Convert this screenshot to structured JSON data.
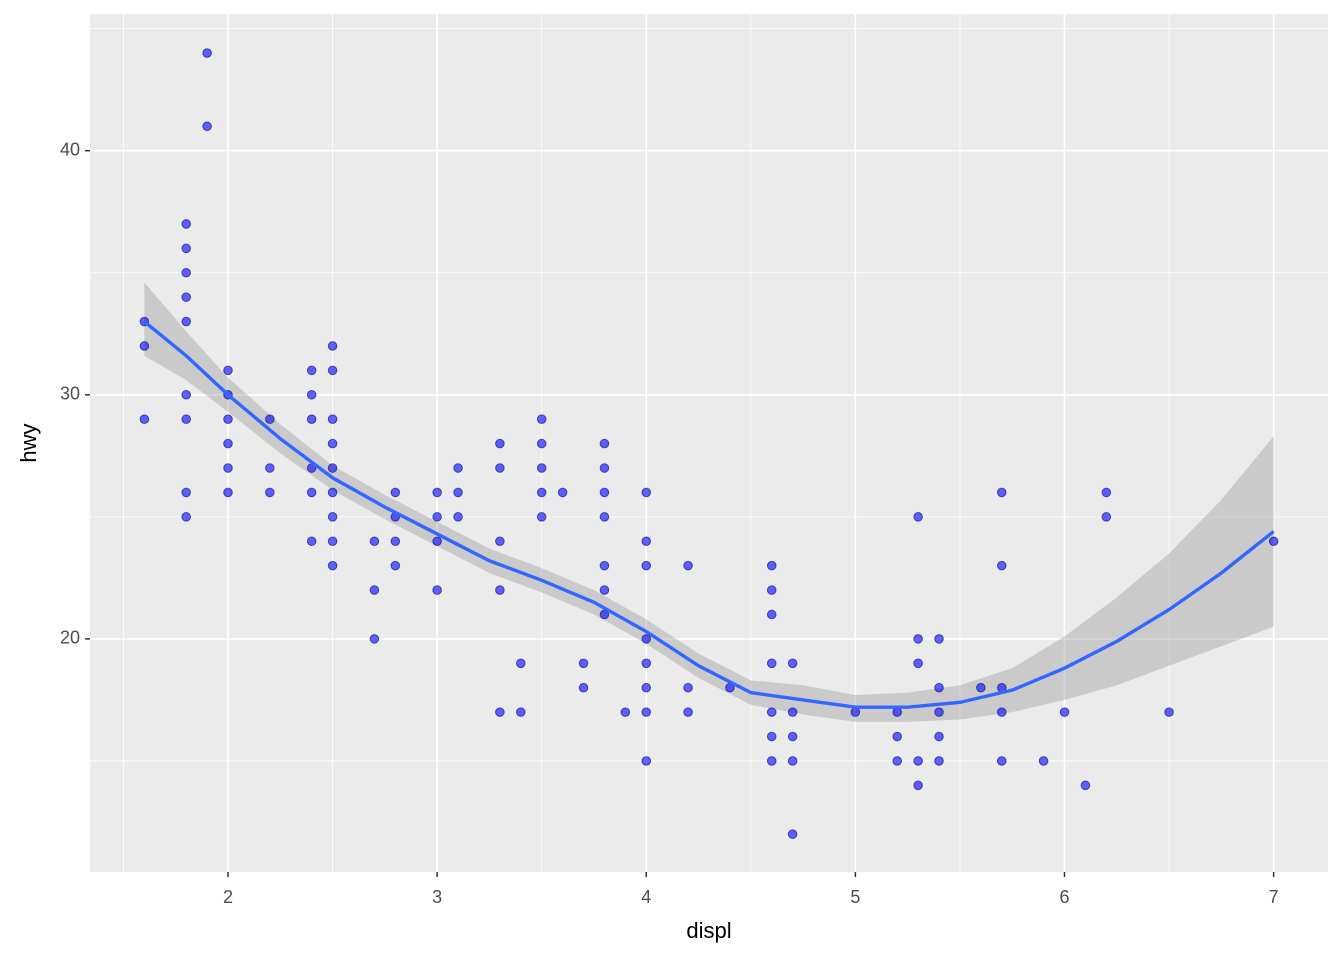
{
  "chart_data": {
    "type": "scatter",
    "x_label": "displ",
    "y_label": "hwy",
    "xlim": [
      1.34,
      7.26
    ],
    "ylim": [
      10.45,
      45.6
    ],
    "xticks": [
      2,
      3,
      4,
      5,
      6,
      7
    ],
    "yticks": [
      20,
      30,
      40
    ],
    "x_minor_grid": [
      1.5,
      2.5,
      3.5,
      4.5,
      5.5,
      6.5
    ],
    "y_minor_grid": [
      15,
      25,
      35,
      45
    ],
    "grid": true,
    "points": {
      "color": "#0000ff",
      "x": [
        1.6,
        1.6,
        1.6,
        1.8,
        1.8,
        1.8,
        1.8,
        1.8,
        1.8,
        1.8,
        1.8,
        1.8,
        1.9,
        1.9,
        2.0,
        2.0,
        2.0,
        2.0,
        2.0,
        2.0,
        2.2,
        2.2,
        2.2,
        2.4,
        2.4,
        2.4,
        2.4,
        2.4,
        2.4,
        2.5,
        2.5,
        2.5,
        2.5,
        2.5,
        2.5,
        2.5,
        2.5,
        2.5,
        2.7,
        2.7,
        2.7,
        2.8,
        2.8,
        2.8,
        2.8,
        3.0,
        3.0,
        3.0,
        3.0,
        3.1,
        3.1,
        3.1,
        3.3,
        3.3,
        3.3,
        3.3,
        3.3,
        3.4,
        3.4,
        3.5,
        3.5,
        3.5,
        3.5,
        3.5,
        3.6,
        3.7,
        3.7,
        3.8,
        3.8,
        3.8,
        3.8,
        3.8,
        3.8,
        3.8,
        3.9,
        4.0,
        4.0,
        4.0,
        4.0,
        4.0,
        4.0,
        4.0,
        4.0,
        4.2,
        4.2,
        4.2,
        4.4,
        4.6,
        4.6,
        4.6,
        4.6,
        4.6,
        4.6,
        4.6,
        4.7,
        4.7,
        4.7,
        4.7,
        4.7,
        5.0,
        5.2,
        5.2,
        5.2,
        5.3,
        5.3,
        5.3,
        5.3,
        5.3,
        5.4,
        5.4,
        5.4,
        5.4,
        5.4,
        5.6,
        5.7,
        5.7,
        5.7,
        5.7,
        5.7,
        5.9,
        6.0,
        6.1,
        6.2,
        6.2,
        6.5,
        7.0
      ],
      "y": [
        33,
        32,
        29,
        37,
        36,
        35,
        34,
        33,
        30,
        29,
        26,
        25,
        44,
        41,
        31,
        30,
        29,
        28,
        27,
        26,
        29,
        27,
        26,
        31,
        30,
        29,
        27,
        26,
        24,
        32,
        31,
        29,
        28,
        27,
        26,
        25,
        24,
        23,
        24,
        22,
        20,
        26,
        25,
        24,
        23,
        26,
        25,
        24,
        22,
        27,
        26,
        25,
        28,
        27,
        24,
        22,
        17,
        19,
        17,
        29,
        28,
        27,
        26,
        25,
        26,
        19,
        18,
        28,
        27,
        26,
        25,
        23,
        22,
        21,
        17,
        26,
        24,
        23,
        20,
        19,
        18,
        17,
        15,
        23,
        18,
        17,
        18,
        23,
        22,
        21,
        19,
        17,
        16,
        15,
        19,
        17,
        16,
        15,
        12,
        17,
        17,
        16,
        15,
        25,
        20,
        19,
        15,
        14,
        20,
        18,
        17,
        16,
        15,
        18,
        26,
        23,
        18,
        17,
        15,
        15,
        17,
        14,
        26,
        25,
        17,
        24
      ]
    },
    "smooth": {
      "color": "#3366ff",
      "ribbon_color": "#999999",
      "x": [
        1.6,
        1.8,
        2.0,
        2.25,
        2.5,
        2.75,
        3.0,
        3.25,
        3.5,
        3.75,
        4.0,
        4.25,
        4.5,
        4.75,
        5.0,
        5.25,
        5.5,
        5.75,
        6.0,
        6.25,
        6.5,
        6.75,
        7.0
      ],
      "y": [
        33,
        31.6,
        30.0,
        28.2,
        26.6,
        25.4,
        24.3,
        23.2,
        22.4,
        21.5,
        20.3,
        18.9,
        17.8,
        17.5,
        17.2,
        17.2,
        17.4,
        17.9,
        18.8,
        19.9,
        21.2,
        22.7,
        24.4
      ],
      "lower": [
        31.6,
        30.6,
        29.3,
        27.6,
        26.1,
        24.9,
        23.8,
        22.7,
        21.9,
        21.0,
        19.8,
        18.4,
        17.3,
        16.9,
        16.6,
        16.6,
        16.7,
        17.0,
        17.5,
        18.1,
        18.9,
        19.7,
        20.5
      ],
      "upper": [
        34.6,
        32.6,
        30.7,
        28.8,
        27.1,
        25.9,
        24.8,
        23.7,
        22.9,
        22.0,
        20.8,
        19.4,
        18.3,
        18.1,
        17.7,
        17.8,
        18.1,
        18.8,
        20.1,
        21.7,
        23.5,
        25.7,
        28.3
      ]
    }
  }
}
